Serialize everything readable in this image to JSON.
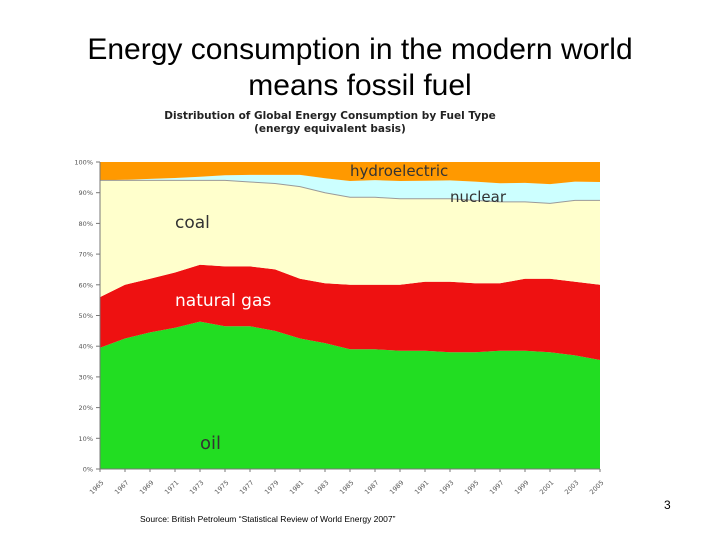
{
  "slide": {
    "title_line1": "Energy consumption in the modern world",
    "title_line2": "means fossil fuel",
    "page_number": "3",
    "source": "Source: British Petroleum “Statistical Review of World Energy 2007”"
  },
  "chart_data": {
    "type": "area",
    "stacked": true,
    "title_line1": "Distribution of Global Energy Consumption by Fuel Type",
    "title_line2": "(energy equivalent basis)",
    "x": [
      1965,
      1967,
      1969,
      1971,
      1973,
      1975,
      1977,
      1979,
      1981,
      1983,
      1985,
      1987,
      1989,
      1991,
      1993,
      1995,
      1997,
      1999,
      2001,
      2003,
      2005
    ],
    "x_tick_labels": [
      "1965",
      "1967",
      "1969",
      "1971",
      "1973",
      "1975",
      "1977",
      "1979",
      "1981",
      "1983",
      "1985",
      "1987",
      "1989",
      "1991",
      "1993",
      "1995",
      "1997",
      "1999",
      "2001",
      "2003",
      "2005"
    ],
    "ylim": [
      0,
      100
    ],
    "y_tick_values": [
      0,
      10,
      20,
      30,
      40,
      50,
      60,
      70,
      80,
      90,
      100
    ],
    "y_tick_labels": [
      "0%",
      "10%",
      "20%",
      "30%",
      "40%",
      "50%",
      "60%",
      "70%",
      "80%",
      "90%",
      "100%"
    ],
    "grid": false,
    "series": [
      {
        "name": "oil",
        "color": "#22dd22",
        "values": [
          39.5,
          42.5,
          44.5,
          46,
          48,
          46.5,
          46.5,
          45,
          42.5,
          41,
          39,
          39,
          38.5,
          38.5,
          38,
          38,
          38.5,
          38.5,
          38,
          37,
          35.5
        ]
      },
      {
        "name": "natural gas",
        "color": "#ee1111",
        "values": [
          16.5,
          17.5,
          17.5,
          18,
          18.5,
          19.5,
          19.5,
          20,
          19.5,
          19.5,
          21,
          21,
          21.5,
          22.5,
          23,
          22.5,
          22,
          23.5,
          24,
          24,
          24.5
        ]
      },
      {
        "name": "coal",
        "color": "#ffffcc",
        "values": [
          38,
          34,
          32,
          30,
          27.5,
          28,
          27.5,
          28,
          30,
          29.5,
          28.5,
          28.5,
          28,
          27,
          27,
          27,
          26.5,
          25,
          24.5,
          26.5,
          27.5
        ]
      },
      {
        "name": "nuclear",
        "color": "#ccffff",
        "values": [
          0,
          0.2,
          0.5,
          0.8,
          1.2,
          1.7,
          2.3,
          2.8,
          3.8,
          4.7,
          5.3,
          5.6,
          5.8,
          5.9,
          6.0,
          6.1,
          6.1,
          6.2,
          6.3,
          6.1,
          6.0
        ]
      },
      {
        "name": "hydroelectric",
        "color": "#ff9900",
        "values": [
          6,
          5.8,
          5.5,
          5.2,
          4.8,
          4.3,
          4.2,
          4.2,
          4.2,
          5.3,
          6.2,
          5.9,
          6.2,
          6.1,
          6.0,
          6.4,
          6.9,
          6.8,
          7.2,
          6.4,
          6.5
        ]
      }
    ]
  }
}
